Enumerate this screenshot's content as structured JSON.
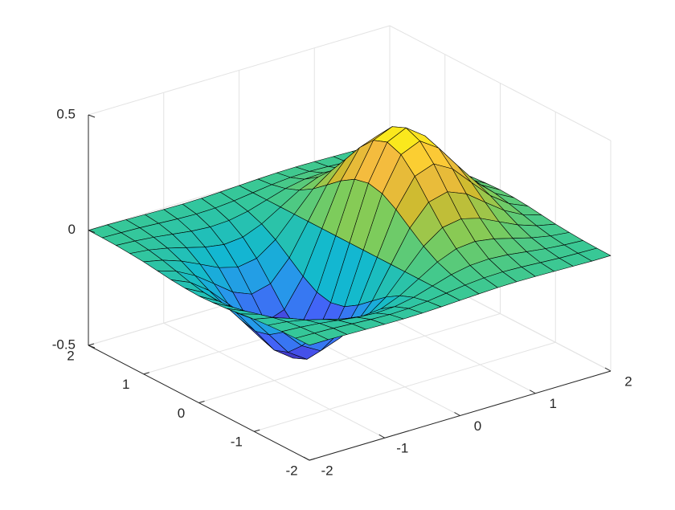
{
  "chart_data": {
    "type": "surface",
    "x": [
      -2,
      -1.75,
      -1.5,
      -1.25,
      -1,
      -0.75,
      -0.5,
      -0.25,
      0,
      0.25,
      0.5,
      0.75,
      1,
      1.25,
      1.5,
      1.75,
      2
    ],
    "y": [
      -2,
      -1.75,
      -1.5,
      -1.25,
      -1,
      -0.75,
      -0.5,
      -0.25,
      0,
      0.25,
      0.5,
      0.75,
      1,
      1.25,
      1.5,
      1.75,
      2
    ],
    "z": [
      [
        -0.001,
        -0.001,
        -0.003,
        -0.005,
        -0.007,
        -0.008,
        -0.007,
        -0.004,
        0,
        0.004,
        0.007,
        0.008,
        0.007,
        0.005,
        0.003,
        0.001,
        0.001
      ],
      [
        -0.002,
        -0.004,
        -0.007,
        -0.012,
        -0.017,
        -0.02,
        -0.018,
        -0.011,
        0,
        0.011,
        0.018,
        0.02,
        0.017,
        0.012,
        0.007,
        0.004,
        0.002
      ],
      [
        -0.004,
        -0.009,
        -0.017,
        -0.028,
        -0.039,
        -0.045,
        -0.041,
        -0.025,
        0,
        0.025,
        0.041,
        0.045,
        0.039,
        0.028,
        0.017,
        0.009,
        0.004
      ],
      [
        -0.008,
        -0.017,
        -0.033,
        -0.055,
        -0.077,
        -0.09,
        -0.082,
        -0.049,
        0,
        0.049,
        0.082,
        0.09,
        0.077,
        0.055,
        0.033,
        0.017,
        0.008
      ],
      [
        -0.013,
        -0.03,
        -0.058,
        -0.096,
        -0.135,
        -0.157,
        -0.143,
        -0.086,
        0,
        0.086,
        0.143,
        0.157,
        0.135,
        0.096,
        0.058,
        0.03,
        0.013
      ],
      [
        -0.021,
        -0.047,
        -0.09,
        -0.149,
        -0.21,
        -0.243,
        -0.222,
        -0.134,
        0,
        0.134,
        0.222,
        0.243,
        0.21,
        0.149,
        0.09,
        0.047,
        0.021
      ],
      [
        -0.029,
        -0.064,
        -0.123,
        -0.204,
        -0.287,
        -0.333,
        -0.303,
        -0.183,
        0,
        0.183,
        0.303,
        0.333,
        0.287,
        0.204,
        0.123,
        0.064,
        0.029
      ],
      [
        -0.034,
        -0.077,
        -0.149,
        -0.246,
        -0.346,
        -0.401,
        -0.366,
        -0.221,
        0,
        0.221,
        0.366,
        0.401,
        0.346,
        0.246,
        0.149,
        0.077,
        0.034
      ],
      [
        -0.037,
        -0.082,
        -0.158,
        -0.262,
        -0.368,
        -0.427,
        -0.389,
        -0.235,
        0,
        0.235,
        0.389,
        0.427,
        0.368,
        0.262,
        0.158,
        0.082,
        0.037
      ],
      [
        -0.034,
        -0.077,
        -0.149,
        -0.246,
        -0.346,
        -0.401,
        -0.366,
        -0.221,
        0,
        0.221,
        0.366,
        0.401,
        0.346,
        0.246,
        0.149,
        0.077,
        0.034
      ],
      [
        -0.029,
        -0.064,
        -0.123,
        -0.204,
        -0.287,
        -0.333,
        -0.303,
        -0.183,
        0,
        0.183,
        0.303,
        0.333,
        0.287,
        0.204,
        0.123,
        0.064,
        0.029
      ],
      [
        -0.021,
        -0.047,
        -0.09,
        -0.149,
        -0.21,
        -0.243,
        -0.222,
        -0.134,
        0,
        0.134,
        0.222,
        0.243,
        0.21,
        0.149,
        0.09,
        0.047,
        0.021
      ],
      [
        -0.013,
        -0.03,
        -0.058,
        -0.096,
        -0.135,
        -0.157,
        -0.143,
        -0.086,
        0,
        0.086,
        0.143,
        0.157,
        0.135,
        0.096,
        0.058,
        0.03,
        0.013
      ],
      [
        -0.008,
        -0.017,
        -0.033,
        -0.055,
        -0.077,
        -0.09,
        -0.082,
        -0.049,
        0,
        0.049,
        0.082,
        0.09,
        0.077,
        0.055,
        0.033,
        0.017,
        0.008
      ],
      [
        -0.004,
        -0.009,
        -0.017,
        -0.028,
        -0.039,
        -0.045,
        -0.041,
        -0.025,
        0,
        0.025,
        0.041,
        0.045,
        0.039,
        0.028,
        0.017,
        0.009,
        0.004
      ],
      [
        -0.002,
        -0.004,
        -0.007,
        -0.012,
        -0.017,
        -0.02,
        -0.018,
        -0.011,
        0,
        0.011,
        0.018,
        0.02,
        0.017,
        0.012,
        0.007,
        0.004,
        0.002
      ],
      [
        -0.001,
        -0.001,
        -0.003,
        -0.005,
        -0.007,
        -0.008,
        -0.007,
        -0.004,
        0,
        0.004,
        0.007,
        0.008,
        0.007,
        0.005,
        0.003,
        0.001,
        0.001
      ]
    ],
    "xlim": [
      -2,
      2
    ],
    "ylim": [
      -2,
      2
    ],
    "zlim": [
      -0.5,
      0.5
    ],
    "xticks": [
      -2,
      -1,
      0,
      1,
      2
    ],
    "yticks": [
      -2,
      -1,
      0,
      1,
      2
    ],
    "zticks": [
      -0.5,
      0,
      0.5
    ],
    "grid": true,
    "colormap": "parula",
    "edge_color": "#000000"
  }
}
